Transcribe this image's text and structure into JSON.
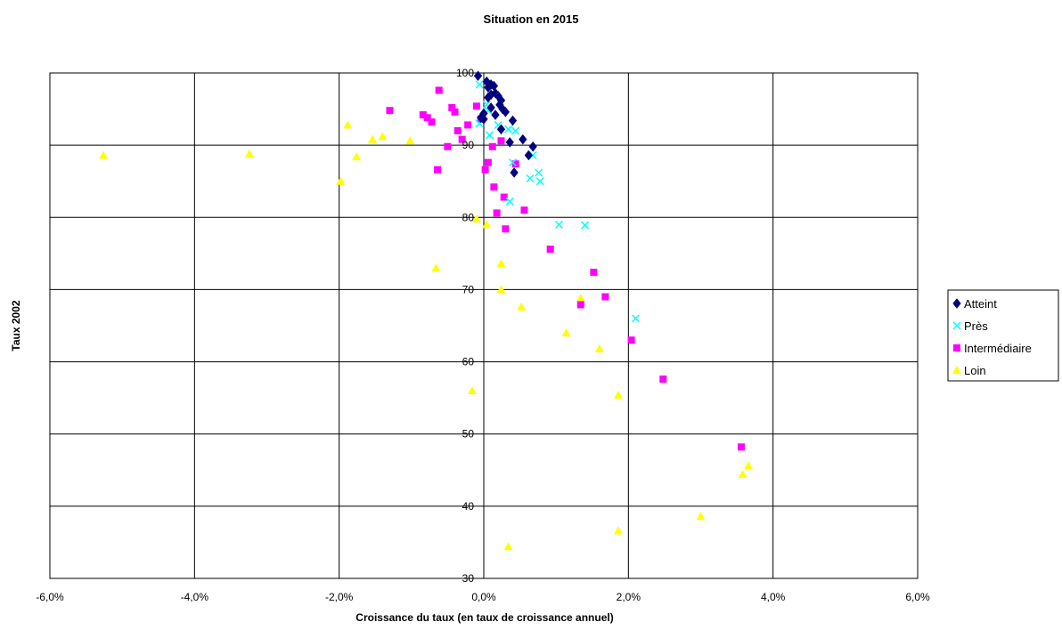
{
  "chart_data": {
    "type": "scatter",
    "title": "Situation en 2015",
    "xlabel": "Croissance du taux (en taux de croissance annuel)",
    "ylabel": "Taux 2002",
    "xlim": [
      -0.06,
      0.06
    ],
    "ylim": [
      30,
      100
    ],
    "x_ticks": [
      -0.06,
      -0.04,
      -0.02,
      0,
      0.02,
      0.04,
      0.06
    ],
    "x_tick_labels": [
      "-6,0%",
      "-4,0%",
      "-2,0%",
      "0,0%",
      "2,0%",
      "4,0%",
      "6,0%"
    ],
    "y_ticks": [
      30,
      40,
      50,
      60,
      70,
      80,
      90,
      100
    ],
    "y_tick_labels": [
      "30",
      "40",
      "50",
      "60",
      "70",
      "80",
      "90",
      "100"
    ],
    "grid": true,
    "legend_position": "right",
    "series": [
      {
        "name": "Atteint",
        "marker": "diamond",
        "color": "#000080",
        "points": [
          [
            -0.0008,
            99.6
          ],
          [
            0.0004,
            98.8
          ],
          [
            0.0006,
            98.0
          ],
          [
            0.001,
            98.4
          ],
          [
            0.0014,
            98.2
          ],
          [
            0.001,
            97.0
          ],
          [
            0.0016,
            97.2
          ],
          [
            0.0006,
            96.6
          ],
          [
            0.002,
            96.8
          ],
          [
            0.0024,
            96.2
          ],
          [
            0.0022,
            95.6
          ],
          [
            0.0026,
            95.0
          ],
          [
            0.003,
            94.6
          ],
          [
            0.0,
            94.4
          ],
          [
            0.001,
            95.2
          ],
          [
            0.0016,
            94.2
          ],
          [
            0.0,
            93.6
          ],
          [
            -0.0004,
            93.8
          ],
          [
            0.0024,
            92.2
          ],
          [
            0.004,
            93.4
          ],
          [
            0.0036,
            90.4
          ],
          [
            0.0054,
            90.8
          ],
          [
            0.0068,
            89.8
          ],
          [
            0.0062,
            88.6
          ],
          [
            0.0042,
            86.2
          ]
        ]
      },
      {
        "name": "Près",
        "marker": "x",
        "color": "#00ffff",
        "points": [
          [
            -0.0006,
            98.4
          ],
          [
            0.0004,
            95.6
          ],
          [
            0.0006,
            94.8
          ],
          [
            -0.0006,
            93.0
          ],
          [
            0.002,
            92.8
          ],
          [
            0.0034,
            92.2
          ],
          [
            0.0044,
            92.0
          ],
          [
            0.0008,
            91.4
          ],
          [
            0.004,
            87.6
          ],
          [
            0.0068,
            88.6
          ],
          [
            0.0076,
            86.2
          ],
          [
            0.0064,
            85.4
          ],
          [
            0.0078,
            85.0
          ],
          [
            0.0036,
            82.2
          ],
          [
            0.0104,
            79.0
          ],
          [
            0.014,
            78.9
          ],
          [
            0.021,
            66.0
          ]
        ]
      },
      {
        "name": "Intermédiaire",
        "marker": "square",
        "color": "#ff00ff",
        "points": [
          [
            -0.0062,
            97.6
          ],
          [
            -0.013,
            94.8
          ],
          [
            -0.0084,
            94.2
          ],
          [
            -0.0078,
            93.8
          ],
          [
            -0.0072,
            93.2
          ],
          [
            -0.0044,
            95.2
          ],
          [
            -0.004,
            94.6
          ],
          [
            -0.001,
            95.4
          ],
          [
            -0.0004,
            93.6
          ],
          [
            -0.0022,
            92.8
          ],
          [
            -0.0036,
            92.0
          ],
          [
            -0.003,
            90.8
          ],
          [
            -0.005,
            89.8
          ],
          [
            0.0024,
            90.6
          ],
          [
            0.0012,
            89.8
          ],
          [
            0.0006,
            87.6
          ],
          [
            0.0044,
            87.4
          ],
          [
            -0.0064,
            86.6
          ],
          [
            0.0002,
            86.6
          ],
          [
            0.0014,
            84.2
          ],
          [
            0.0028,
            82.8
          ],
          [
            0.0056,
            81.0
          ],
          [
            0.0018,
            80.6
          ],
          [
            0.003,
            78.4
          ],
          [
            0.0092,
            75.6
          ],
          [
            0.0152,
            72.4
          ],
          [
            0.0168,
            69.0
          ],
          [
            0.0134,
            67.9
          ],
          [
            0.0204,
            63.0
          ],
          [
            0.0248,
            57.6
          ],
          [
            0.0356,
            48.2
          ]
        ]
      },
      {
        "name": "Loin",
        "marker": "triangle",
        "color": "#ffff00",
        "points": [
          [
            -0.0526,
            88.6
          ],
          [
            -0.0324,
            88.8
          ],
          [
            -0.0188,
            92.8
          ],
          [
            -0.014,
            91.2
          ],
          [
            -0.0154,
            90.8
          ],
          [
            -0.0102,
            90.6
          ],
          [
            -0.0176,
            88.4
          ],
          [
            -0.0198,
            85.0
          ],
          [
            -0.0066,
            73.0
          ],
          [
            -0.001,
            79.8
          ],
          [
            0.0004,
            79.0
          ],
          [
            0.0024,
            73.6
          ],
          [
            0.0024,
            70.0
          ],
          [
            0.0052,
            67.6
          ],
          [
            0.0134,
            68.8
          ],
          [
            0.0114,
            64.0
          ],
          [
            0.016,
            61.8
          ],
          [
            0.0186,
            55.4
          ],
          [
            -0.0016,
            56.0
          ],
          [
            0.0366,
            45.6
          ],
          [
            0.0358,
            44.4
          ],
          [
            0.03,
            38.6
          ],
          [
            0.0186,
            36.6
          ],
          [
            0.0034,
            34.4
          ]
        ]
      }
    ]
  }
}
